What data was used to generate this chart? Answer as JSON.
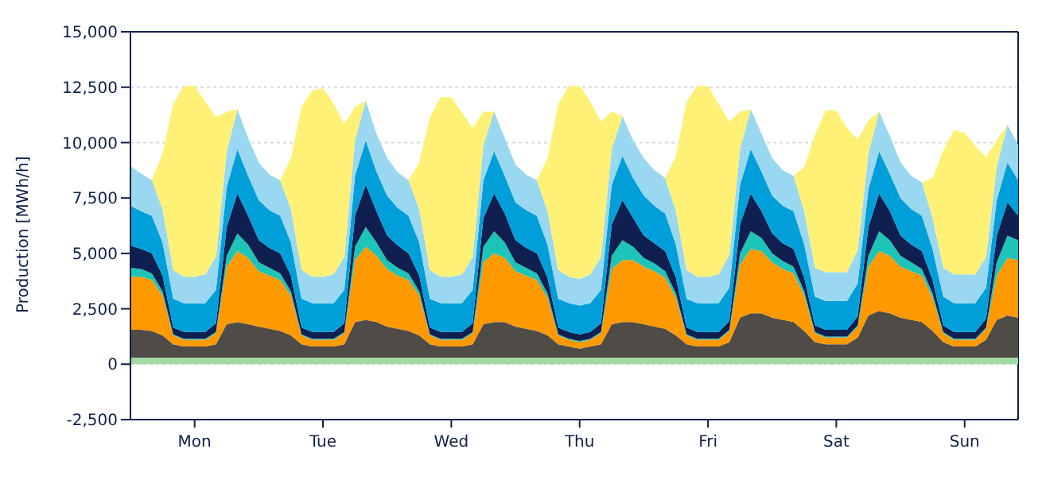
{
  "chart_data": {
    "type": "area",
    "stacked": true,
    "ylabel": "Production [MWh/h]",
    "grid": "y",
    "categories": [
      null,
      null,
      null,
      null,
      null,
      null,
      "Mon",
      null,
      null,
      null,
      null,
      null,
      null,
      null,
      null,
      null,
      null,
      null,
      "Tue",
      null,
      null,
      null,
      null,
      null,
      null,
      null,
      null,
      null,
      null,
      null,
      "Wed",
      null,
      null,
      null,
      null,
      null,
      null,
      null,
      null,
      null,
      null,
      null,
      "Thu",
      null,
      null,
      null,
      null,
      null,
      null,
      null,
      null,
      null,
      null,
      null,
      "Fri",
      null,
      null,
      null,
      null,
      null,
      null,
      null,
      null,
      null,
      null,
      null,
      "Sat",
      null,
      null,
      null,
      null,
      null,
      null,
      null,
      null,
      null,
      null,
      null,
      "Sun",
      null,
      null,
      null,
      null,
      null
    ],
    "ylim": [
      -2500,
      15000
    ],
    "yticks": [
      {
        "value": -2500,
        "label": "-2,500"
      },
      {
        "value": 0,
        "label": "0"
      },
      {
        "value": 2500,
        "label": "2,500"
      },
      {
        "value": 5000,
        "label": "5,000"
      },
      {
        "value": 7500,
        "label": "7,500"
      },
      {
        "value": 10000,
        "label": "10,000"
      },
      {
        "value": 12500,
        "label": "12,500"
      },
      {
        "value": 15000,
        "label": "15,000"
      }
    ],
    "series": [
      {
        "color": "#a3d9a5",
        "values": [
          300,
          300,
          300,
          300,
          300,
          300,
          300,
          300,
          300,
          300,
          300,
          300,
          300,
          300,
          300,
          300,
          300,
          300,
          300,
          300,
          300,
          300,
          300,
          300,
          300,
          300,
          300,
          300,
          300,
          300,
          300,
          300,
          300,
          300,
          300,
          300,
          300,
          300,
          300,
          300,
          300,
          300,
          300,
          300,
          300,
          300,
          300,
          300,
          300,
          300,
          300,
          300,
          300,
          300,
          300,
          300,
          300,
          300,
          300,
          300,
          300,
          300,
          300,
          300,
          300,
          300,
          300,
          300,
          300,
          300,
          300,
          300,
          300,
          300,
          300,
          300,
          300,
          300,
          300,
          300,
          300,
          300,
          300,
          300
        ]
      },
      {
        "color": "#4f4c47",
        "values": [
          1250,
          1250,
          1200,
          1000,
          600,
          500,
          500,
          500,
          600,
          1500,
          1600,
          1500,
          1400,
          1300,
          1200,
          1000,
          600,
          500,
          500,
          500,
          600,
          1600,
          1700,
          1600,
          1400,
          1300,
          1200,
          1000,
          600,
          500,
          500,
          500,
          600,
          1500,
          1600,
          1600,
          1400,
          1300,
          1200,
          1000,
          600,
          500,
          400,
          500,
          600,
          1500,
          1600,
          1600,
          1500,
          1400,
          1300,
          1000,
          600,
          500,
          500,
          500,
          700,
          1800,
          2000,
          2000,
          1800,
          1700,
          1600,
          1200,
          700,
          600,
          600,
          600,
          900,
          1900,
          2100,
          2000,
          1800,
          1700,
          1600,
          1200,
          700,
          500,
          500,
          500,
          800,
          1700,
          1900,
          1800
        ]
      },
      {
        "color": "#ff9900",
        "values": [
          2400,
          2400,
          2300,
          1800,
          400,
          300,
          300,
          300,
          500,
          2600,
          3200,
          3000,
          2500,
          2400,
          2300,
          1800,
          400,
          300,
          300,
          300,
          500,
          2800,
          3300,
          3000,
          2600,
          2400,
          2300,
          1800,
          400,
          300,
          300,
          300,
          500,
          2800,
          3100,
          2900,
          2500,
          2400,
          2300,
          1700,
          400,
          300,
          300,
          300,
          500,
          2500,
          2800,
          2800,
          2600,
          2500,
          2300,
          1700,
          400,
          300,
          300,
          300,
          500,
          2400,
          2900,
          2800,
          2500,
          2300,
          2200,
          1600,
          400,
          300,
          300,
          300,
          500,
          2200,
          2700,
          2600,
          2300,
          2200,
          2100,
          1500,
          400,
          300,
          300,
          300,
          500,
          2000,
          2600,
          2600
        ]
      },
      {
        "color": "#1dc4b8",
        "values": [
          400,
          350,
          300,
          200,
          50,
          50,
          50,
          50,
          50,
          500,
          800,
          600,
          400,
          350,
          300,
          200,
          50,
          50,
          50,
          50,
          50,
          600,
          900,
          600,
          400,
          350,
          300,
          200,
          50,
          50,
          50,
          50,
          50,
          700,
          1000,
          700,
          400,
          350,
          300,
          200,
          50,
          50,
          50,
          50,
          50,
          600,
          900,
          600,
          400,
          350,
          300,
          200,
          50,
          50,
          50,
          50,
          50,
          500,
          800,
          600,
          400,
          350,
          300,
          200,
          50,
          50,
          50,
          50,
          50,
          500,
          900,
          700,
          500,
          400,
          300,
          200,
          50,
          50,
          50,
          50,
          50,
          600,
          1000,
          900
        ]
      },
      {
        "color": "#0f1f4f",
        "values": [
          1000,
          900,
          900,
          700,
          300,
          300,
          300,
          300,
          400,
          1300,
          1800,
          1300,
          1000,
          900,
          900,
          700,
          300,
          300,
          300,
          300,
          400,
          1400,
          1900,
          1400,
          1100,
          1000,
          900,
          700,
          300,
          300,
          300,
          300,
          400,
          1300,
          1700,
          1300,
          1000,
          900,
          900,
          700,
          300,
          300,
          300,
          300,
          400,
          1400,
          1800,
          1300,
          1000,
          900,
          900,
          700,
          300,
          300,
          300,
          300,
          400,
          1300,
          1700,
          1200,
          900,
          800,
          800,
          600,
          300,
          300,
          300,
          300,
          400,
          1300,
          1700,
          1300,
          900,
          800,
          800,
          600,
          300,
          300,
          300,
          300,
          400,
          1200,
          1500,
          1100
        ]
      },
      {
        "color": "#009fda",
        "values": [
          1800,
          1700,
          1700,
          1500,
          1300,
          1300,
          1300,
          1300,
          1500,
          1800,
          2000,
          1800,
          1800,
          1700,
          1700,
          1500,
          1300,
          1300,
          1300,
          1300,
          1500,
          1800,
          2000,
          1800,
          1800,
          1700,
          1700,
          1500,
          1300,
          1300,
          1300,
          1300,
          1500,
          1700,
          1900,
          1700,
          1700,
          1700,
          1700,
          1500,
          1300,
          1300,
          1300,
          1300,
          1500,
          1800,
          2000,
          1800,
          1800,
          1700,
          1700,
          1500,
          1300,
          1300,
          1300,
          1300,
          1500,
          1800,
          2000,
          1800,
          1700,
          1700,
          1700,
          1500,
          1300,
          1300,
          1300,
          1300,
          1500,
          1700,
          1900,
          1700,
          1700,
          1600,
          1600,
          1400,
          1300,
          1300,
          1300,
          1300,
          1400,
          1600,
          1800,
          1600
        ]
      },
      {
        "color": "#99d8f0",
        "values": [
          1800,
          1700,
          1600,
          1500,
          1300,
          1200,
          1200,
          1300,
          1500,
          1600,
          1800,
          1700,
          1700,
          1600,
          1600,
          1500,
          1300,
          1200,
          1200,
          1300,
          1500,
          1600,
          1800,
          1700,
          1700,
          1600,
          1600,
          1500,
          1300,
          1200,
          1200,
          1300,
          1500,
          1600,
          1800,
          1700,
          1700,
          1600,
          1600,
          1500,
          1300,
          1200,
          1200,
          1300,
          1500,
          1600,
          1800,
          1700,
          1700,
          1600,
          1600,
          1500,
          1300,
          1200,
          1200,
          1300,
          1500,
          1600,
          1800,
          1700,
          1700,
          1600,
          1600,
          1500,
          1300,
          1300,
          1300,
          1300,
          1500,
          1600,
          1800,
          1700,
          1600,
          1500,
          1500,
          1400,
          1300,
          1300,
          1300,
          1300,
          1400,
          1500,
          1700,
          1600
        ]
      },
      {
        "color": "#fff176",
        "values": [
          0,
          0,
          0,
          2500,
          7500,
          8600,
          8600,
          7800,
          6300,
          1800,
          0,
          0,
          0,
          0,
          0,
          2300,
          7400,
          8400,
          8500,
          7700,
          6000,
          1500,
          0,
          0,
          0,
          0,
          0,
          2100,
          6900,
          8100,
          8100,
          7300,
          5800,
          1500,
          0,
          0,
          0,
          0,
          0,
          2400,
          7500,
          8600,
          8700,
          7800,
          6100,
          1700,
          0,
          0,
          0,
          0,
          0,
          2500,
          7600,
          8600,
          8600,
          7700,
          6000,
          1700,
          0,
          0,
          0,
          0,
          0,
          2000,
          6000,
          7300,
          7300,
          6500,
          5000,
          1500,
          0,
          0,
          0,
          0,
          0,
          1800,
          5300,
          6500,
          6400,
          5800,
          4500,
          1200,
          0,
          0
        ]
      }
    ]
  }
}
